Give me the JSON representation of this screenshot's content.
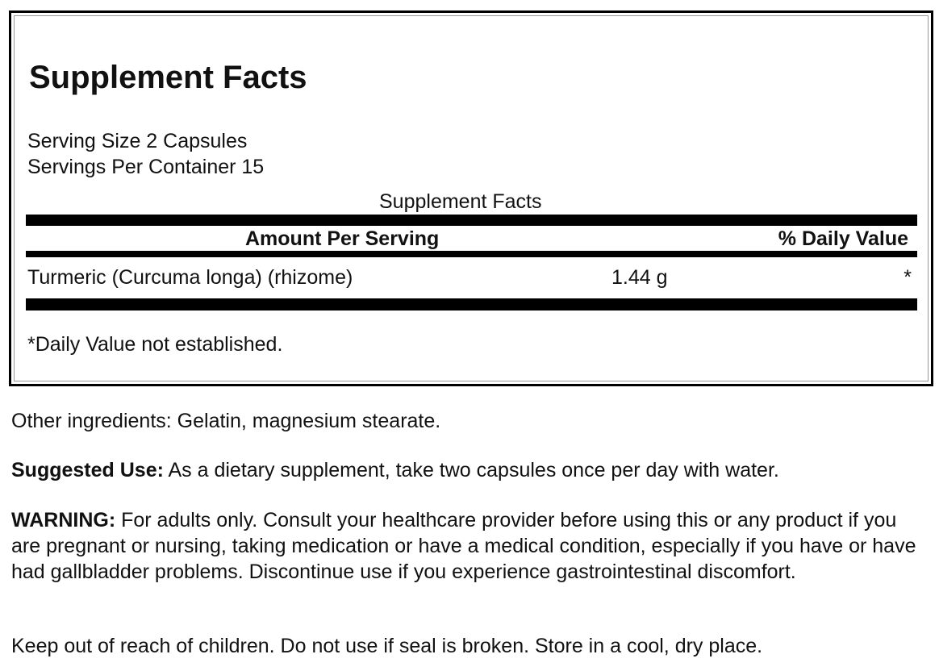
{
  "facts": {
    "title": "Supplement Facts",
    "serving_size": "Serving Size 2 Capsules",
    "servings_per_container": "Servings Per Container 15",
    "table_caption": "Supplement Facts",
    "header_amount": "Amount Per Serving",
    "header_dv": "% Daily Value",
    "rows": [
      {
        "name": "Turmeric (Curcuma longa) (rhizome)",
        "amount": "1.44 g",
        "dv": "*"
      }
    ],
    "footnote": "*Daily Value not established."
  },
  "other_ingredients": "Other ingredients: Gelatin, magnesium stearate.",
  "suggested_use": {
    "label": "Suggested Use:",
    "text": " As a dietary supplement, take two capsules once per day with water."
  },
  "warning": {
    "label": "WARNING:",
    "text": " For adults only. Consult your healthcare provider before using this or any product if you are pregnant or nursing, taking medication or have a medical condition, especially if you have or have had gallbladder problems. Discontinue use if you experience gastrointestinal discomfort."
  },
  "storage": "Keep out of reach of children. Do not use if seal is broken. Store in a cool, dry place."
}
